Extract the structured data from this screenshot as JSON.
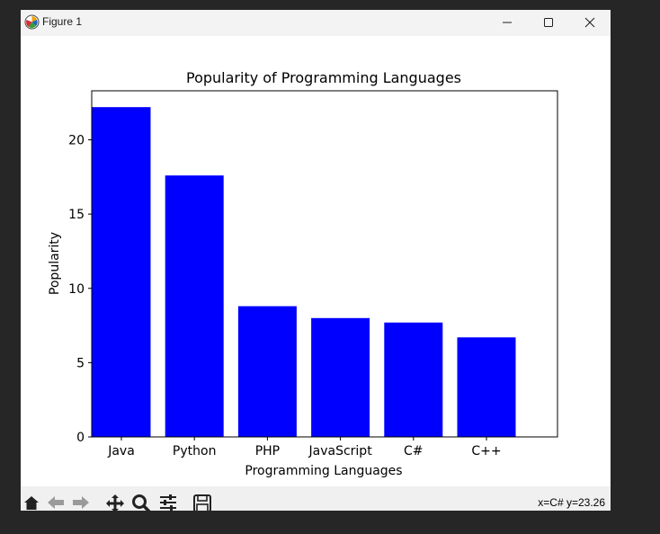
{
  "window": {
    "title": "Figure 1",
    "icon": "matplotlib-logo-icon",
    "controls": [
      "minimize-icon",
      "maximize-icon",
      "close-icon"
    ]
  },
  "toolbar": {
    "tools": [
      "home-icon",
      "back-arrow-icon",
      "forward-arrow-icon",
      "pan-icon",
      "zoom-icon",
      "configure-subplots-icon",
      "save-icon"
    ],
    "coords": "x=C# y=23.26"
  },
  "chart_data": {
    "type": "bar",
    "title": "Popularity of Programming Languages",
    "xlabel": "Programming Languages",
    "ylabel": "Popularity",
    "categories": [
      "Java",
      "Python",
      "PHP",
      "JavaScript",
      "C#",
      "C++"
    ],
    "values": [
      22.2,
      17.6,
      8.8,
      8.0,
      7.7,
      6.7
    ],
    "yticks": [
      0,
      5,
      10,
      15,
      20
    ],
    "ylim": [
      0,
      23.3
    ],
    "bar_color": "#0000ff",
    "grid": false,
    "legend": "none"
  }
}
